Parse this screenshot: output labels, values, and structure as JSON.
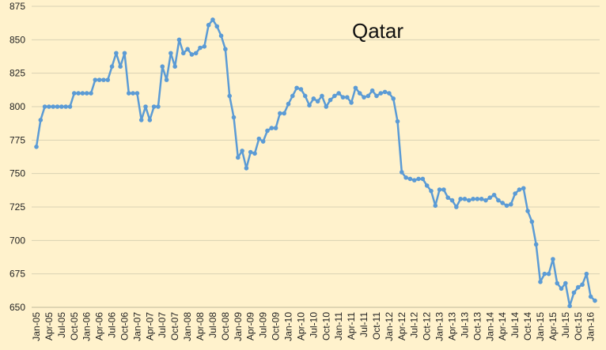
{
  "chart_data": {
    "type": "line",
    "title": "Qatar",
    "xlabel": "",
    "ylabel": "",
    "ylim": [
      650,
      875
    ],
    "y_ticks": [
      650,
      675,
      700,
      725,
      750,
      775,
      800,
      825,
      850,
      875
    ],
    "grid": "horizontal",
    "legend": "none",
    "x_tick_labels": [
      "Jan-05",
      "Apr-05",
      "Jul-05",
      "Oct-05",
      "Jan-06",
      "Apr-06",
      "Jul-06",
      "Oct-06",
      "Jan-07",
      "Apr-07",
      "Jul-07",
      "Oct-07",
      "Jan-08",
      "Apr-08",
      "Jul-08",
      "Oct-08",
      "Jan-09",
      "Apr-09",
      "Jul-09",
      "Oct-09",
      "Jan-10",
      "Apr-10",
      "Jul-10",
      "Oct-10",
      "Jan-11",
      "Apr-11",
      "Jul-11",
      "Oct-11",
      "Jan-12",
      "Apr-12",
      "Jul-12",
      "Oct-12",
      "Jan-13",
      "Apr-13",
      "Jul-13",
      "Oct-13",
      "Jan-14",
      "Apr-14",
      "Jul-14",
      "Oct-14",
      "Jan-15",
      "Apr-15",
      "Jul-15",
      "Oct-15",
      "Jan-16"
    ],
    "x_start": "Jan-05",
    "x_step": "1 month",
    "series": [
      {
        "color": "#5b9bd5",
        "values": [
          770,
          790,
          800,
          800,
          800,
          800,
          800,
          800,
          800,
          810,
          810,
          810,
          810,
          810,
          820,
          820,
          820,
          820,
          830,
          840,
          830,
          840,
          810,
          810,
          810,
          790,
          800,
          790,
          800,
          800,
          830,
          820,
          840,
          830,
          850,
          840,
          843,
          839,
          840,
          844,
          845,
          861,
          865,
          860,
          853,
          843,
          808,
          792,
          762,
          767,
          754,
          766,
          765,
          776,
          774,
          782,
          784,
          784,
          795,
          795,
          802,
          808,
          814,
          813,
          808,
          801,
          806,
          804,
          808,
          800,
          805,
          808,
          810,
          807,
          807,
          803,
          814,
          810,
          807,
          808,
          812,
          808,
          810,
          811,
          810,
          806,
          789,
          751,
          747,
          746,
          745,
          746,
          746,
          741,
          737,
          726,
          738,
          738,
          732,
          730,
          725,
          731,
          731,
          730,
          731,
          731,
          731,
          730,
          732,
          734,
          730,
          728,
          726,
          727,
          735,
          738,
          739,
          722,
          714,
          697,
          669,
          675,
          675,
          686,
          668,
          664,
          668,
          651,
          661,
          665,
          667,
          675,
          658,
          655
        ]
      }
    ]
  }
}
